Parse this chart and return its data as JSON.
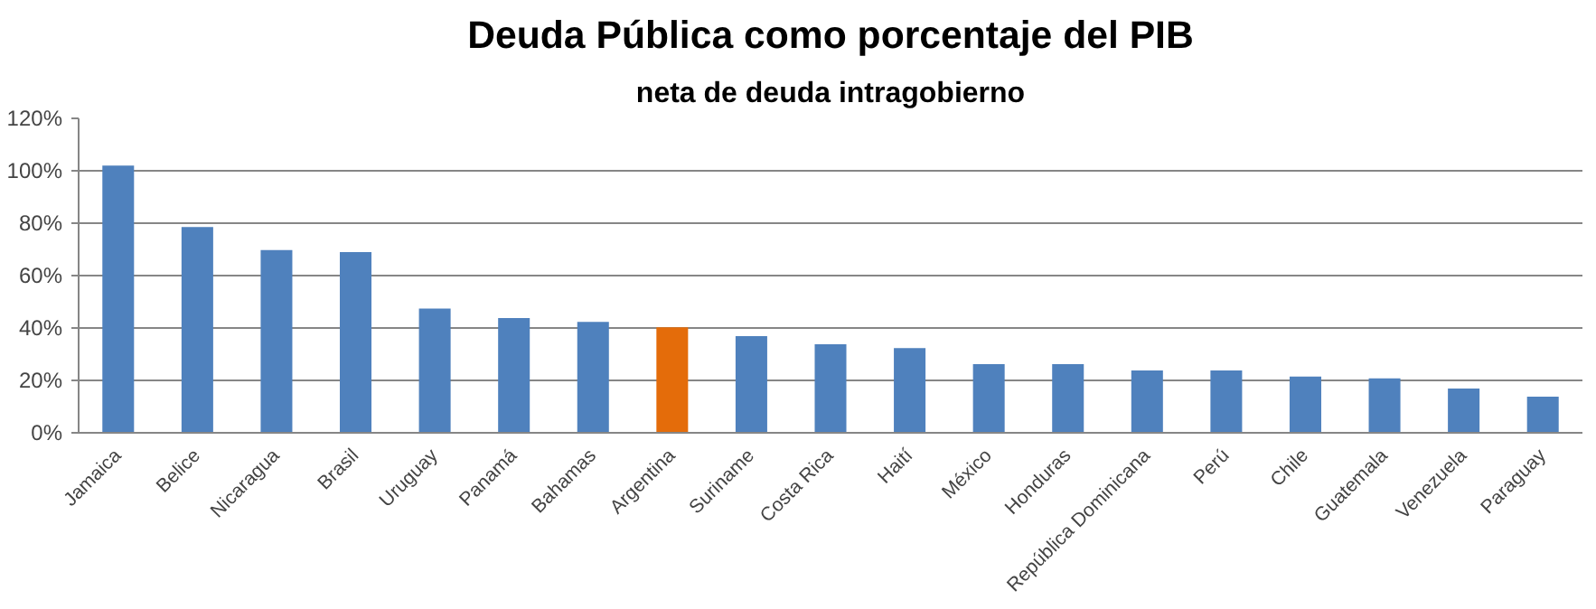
{
  "chart_data": {
    "type": "bar",
    "title": "Deuda Pública como porcentaje del PIB",
    "subtitle": "neta de deuda intragobierno",
    "categories": [
      "Jamaica",
      "Belice",
      "Nicaragua",
      "Brasil",
      "Uruguay",
      "Panamá",
      "Bahamas",
      "Argentina",
      "Suriname",
      "Costa Rica",
      "Haití",
      "México",
      "Honduras",
      "República Dominicana",
      "Perú",
      "Chile",
      "Guatemala",
      "Venezuela",
      "Paraguay"
    ],
    "values": [
      102,
      78.5,
      69.7,
      69,
      47.4,
      43.8,
      42.3,
      40.3,
      36.9,
      33.8,
      32.3,
      26.2,
      26.2,
      23.8,
      23.8,
      21.5,
      20.8,
      16.9,
      13.8
    ],
    "colors": [
      "#4f81bd",
      "#4f81bd",
      "#4f81bd",
      "#4f81bd",
      "#4f81bd",
      "#4f81bd",
      "#4f81bd",
      "#e46c0a",
      "#4f81bd",
      "#4f81bd",
      "#4f81bd",
      "#4f81bd",
      "#4f81bd",
      "#4f81bd",
      "#4f81bd",
      "#4f81bd",
      "#4f81bd",
      "#4f81bd",
      "#4f81bd"
    ],
    "ylim": [
      0,
      120
    ],
    "yticks": [
      {
        "value": 0,
        "label": "0%"
      },
      {
        "value": 20,
        "label": "20%"
      },
      {
        "value": 40,
        "label": "40%"
      },
      {
        "value": 60,
        "label": "60%"
      },
      {
        "value": 80,
        "label": "80%"
      },
      {
        "value": 100,
        "label": "100%"
      },
      {
        "value": 120,
        "label": "120%"
      }
    ],
    "grid": "y"
  }
}
